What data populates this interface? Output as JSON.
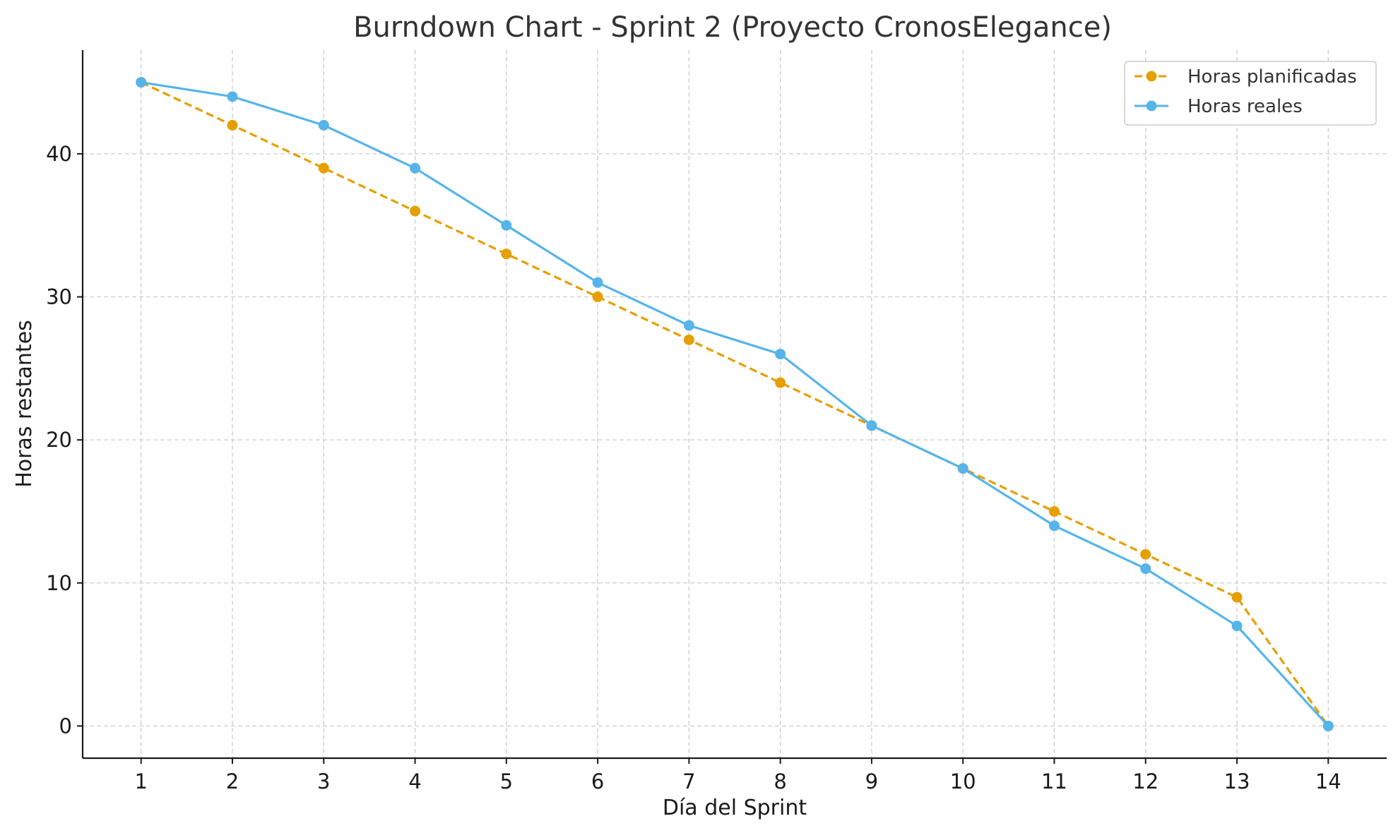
{
  "chart_data": {
    "type": "line",
    "title": "Burndown Chart - Sprint 2 (Proyecto CronosElegance)",
    "xlabel": "Día del Sprint",
    "ylabel": "Horas restantes",
    "x": [
      1,
      2,
      3,
      4,
      5,
      6,
      7,
      8,
      9,
      10,
      11,
      12,
      13,
      14
    ],
    "x_ticks": [
      "1",
      "2",
      "3",
      "4",
      "5",
      "6",
      "7",
      "8",
      "9",
      "10",
      "11",
      "12",
      "13",
      "14"
    ],
    "y_ticks": [
      "0",
      "10",
      "20",
      "30",
      "40"
    ],
    "xlim": [
      0.36,
      14.64
    ],
    "ylim": [
      -2.25,
      47.25
    ],
    "grid": true,
    "legend_position": "top-right",
    "series": [
      {
        "name": "Horas planificadas",
        "color": "#E69F00",
        "line_style": "dashed",
        "marker": "circle",
        "values": [
          45,
          42,
          39,
          36,
          33,
          30,
          27,
          24,
          21,
          18,
          15,
          12,
          9,
          0
        ]
      },
      {
        "name": "Horas reales",
        "color": "#56B4E9",
        "line_style": "solid",
        "marker": "circle",
        "values": [
          45,
          44,
          42,
          39,
          35,
          31,
          28,
          26,
          21,
          18,
          14,
          11,
          7,
          0
        ]
      }
    ]
  }
}
